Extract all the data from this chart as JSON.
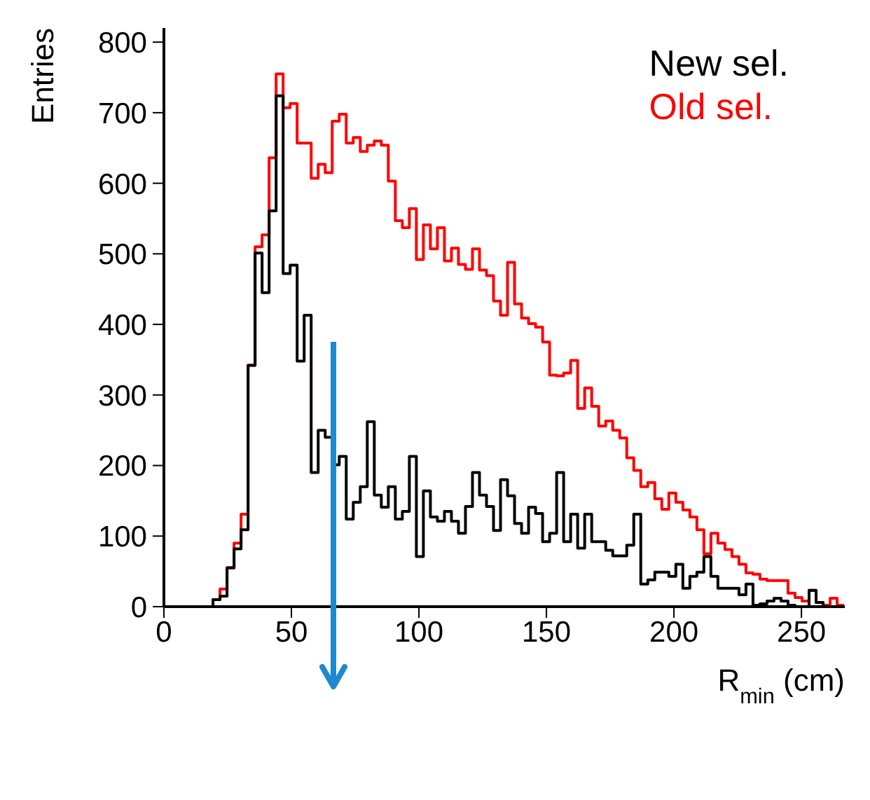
{
  "chart_data": {
    "type": "histogram",
    "xlabel": "R$_{min}$ (cm)",
    "ylabel": "Entries",
    "bins": [
      0,
      2.75,
      5.5,
      8.25,
      11,
      13.75,
      16.5,
      19.25,
      22,
      24.75,
      27.5,
      30.25,
      33,
      35.75,
      38.5,
      41.25,
      44,
      46.75,
      49.5,
      52.25,
      55,
      57.75,
      60.5,
      63.25,
      66,
      68.75,
      71.5,
      74.25,
      77,
      79.75,
      82.5,
      85.25,
      88,
      90.75,
      93.5,
      96.25,
      99,
      101.75,
      104.5,
      107.25,
      110,
      112.75,
      115.5,
      118.25,
      121,
      123.75,
      126.5,
      129.25,
      132,
      134.75,
      137.5,
      140.25,
      143,
      145.75,
      148.5,
      151.25,
      154,
      156.75,
      159.5,
      162.25,
      165,
      167.75,
      170.5,
      173.25,
      176,
      178.75,
      181.5,
      184.25,
      187,
      189.75,
      192.5,
      195.25,
      198,
      200.75,
      203.5,
      206.25,
      209,
      211.75,
      214.5,
      217.25,
      220,
      222.75,
      225.5,
      228.25,
      231,
      233.75,
      236.5,
      239.25,
      242,
      244.75,
      247.5,
      250.25,
      253,
      255.75,
      258.5,
      261.25,
      264,
      266.75
    ],
    "series": [
      {
        "name": "New sel.",
        "color": "#000000",
        "values": [
          0,
          0,
          0,
          0,
          0,
          0,
          0,
          10,
          15,
          55,
          82,
          109,
          342,
          501,
          445,
          561,
          724,
          472,
          484,
          348,
          413,
          190,
          250,
          240,
          201,
          213,
          124,
          148,
          170,
          262,
          158,
          141,
          170,
          124,
          135,
          213,
          71,
          164,
          127,
          121,
          135,
          121,
          104,
          142,
          190,
          158,
          142,
          108,
          180,
          157,
          118,
          104,
          141,
          132,
          92,
          104,
          190,
          92,
          131,
          83,
          131,
          92,
          92,
          80,
          72,
          72,
          87,
          131,
          32,
          38,
          49,
          49,
          43,
          60,
          26,
          43,
          49,
          71,
          43,
          26,
          26,
          26,
          17,
          32,
          2,
          4,
          8,
          12,
          8,
          2,
          0,
          0,
          23,
          6,
          0,
          0,
          0
        ]
      },
      {
        "name": "Old sel.",
        "color": "#ff0000",
        "values": [
          0,
          0,
          0,
          0,
          0,
          0,
          0,
          10,
          25,
          55,
          90,
          131,
          342,
          510,
          527,
          636,
          755,
          707,
          713,
          657,
          657,
          607,
          627,
          615,
          688,
          698,
          657,
          665,
          645,
          654,
          660,
          654,
          603,
          547,
          537,
          564,
          492,
          541,
          507,
          537,
          490,
          508,
          485,
          478,
          507,
          477,
          469,
          433,
          413,
          488,
          429,
          409,
          401,
          396,
          375,
          328,
          327,
          331,
          349,
          281,
          310,
          284,
          256,
          263,
          250,
          239,
          211,
          193,
          170,
          176,
          153,
          138,
          161,
          148,
          137,
          127,
          109,
          75,
          104,
          90,
          81,
          71,
          60,
          48,
          46,
          39,
          37,
          37,
          37,
          19,
          13,
          8,
          23,
          6,
          2,
          12,
          2
        ]
      }
    ],
    "xlim": [
      0,
      267
    ],
    "xticks": [
      0,
      50,
      100,
      150,
      200,
      250
    ],
    "ylim": [
      0,
      820
    ],
    "yticks": [
      0,
      100,
      200,
      300,
      400,
      500,
      600,
      700,
      800
    ],
    "legend": "top right",
    "line_style": "solid",
    "marker": "none"
  }
}
